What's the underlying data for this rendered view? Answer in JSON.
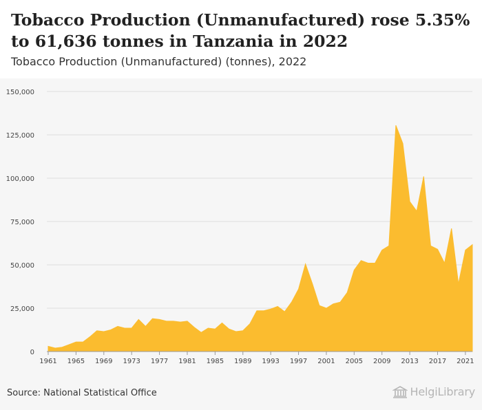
{
  "header": {
    "title": "Tobacco Production (Unmanufactured) rose 5.35% to 61,636 tonnes in Tanzania in 2022",
    "subtitle": "Tobacco Production (Unmanufactured) (tonnes), 2022"
  },
  "footer": {
    "source": "Source: National Statistical Office",
    "logo_text": "HelgiLibrary"
  },
  "colors": {
    "area_fill": "#fbbc2f",
    "grid": "#dddddd",
    "axis_text": "#444444",
    "panel_bg": "#f6f6f6"
  },
  "chart_data": {
    "type": "area",
    "title": "Tobacco Production (Unmanufactured) (tonnes), 2022",
    "xlabel": "",
    "ylabel": "",
    "ylim": [
      0,
      150000
    ],
    "yticks": [
      0,
      25000,
      50000,
      75000,
      100000,
      125000,
      150000
    ],
    "ytick_labels": [
      "0",
      "25,000",
      "50,000",
      "75,000",
      "100,000",
      "125,000",
      "150,000"
    ],
    "xticks": [
      1961,
      1965,
      1969,
      1973,
      1977,
      1981,
      1985,
      1989,
      1993,
      1997,
      2001,
      2005,
      2009,
      2013,
      2017,
      2021
    ],
    "grid": true,
    "legend": "none",
    "series": [
      {
        "x": [
          1961,
          1962,
          1963,
          1964,
          1965,
          1966,
          1967,
          1968,
          1969,
          1970,
          1971,
          1972,
          1973,
          1974,
          1975,
          1976,
          1977,
          1978,
          1979,
          1980,
          1981,
          1982,
          1983,
          1984,
          1985,
          1986,
          1987,
          1988,
          1989,
          1990,
          1991,
          1992,
          1993,
          1994,
          1995,
          1996,
          1997,
          1998,
          1999,
          2000,
          2001,
          2002,
          2003,
          2004,
          2005,
          2006,
          2007,
          2008,
          2009,
          2010,
          2011,
          2012,
          2013,
          2014,
          2015,
          2016,
          2017,
          2018,
          2019,
          2020,
          2021,
          2022
        ],
        "values": [
          3000,
          2000,
          2500,
          4000,
          5500,
          5500,
          8500,
          12000,
          11500,
          12500,
          14500,
          13500,
          13500,
          18500,
          14500,
          19000,
          18500,
          17500,
          17500,
          17000,
          17500,
          14000,
          11000,
          13500,
          13000,
          16500,
          13000,
          11500,
          12000,
          16000,
          23500,
          23500,
          24500,
          26000,
          23000,
          28500,
          36000,
          50500,
          39000,
          26500,
          25000,
          27500,
          28500,
          34000,
          47000,
          52500,
          51000,
          51000,
          58500,
          61000,
          130500,
          120000,
          86500,
          81000,
          101000,
          61000,
          59000,
          51000,
          71000,
          39000,
          58500,
          61636
        ]
      }
    ]
  }
}
